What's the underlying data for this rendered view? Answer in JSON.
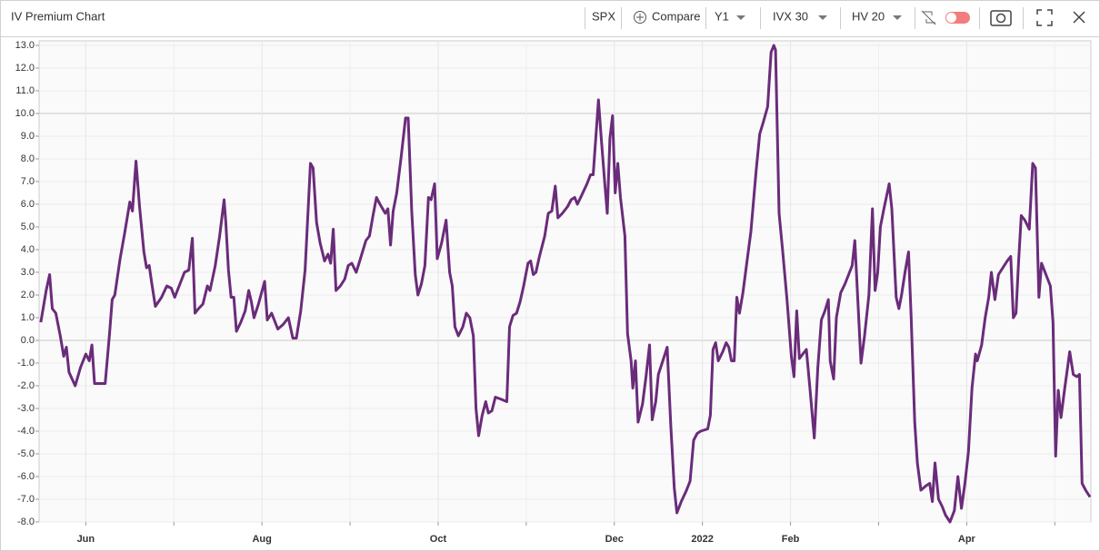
{
  "toolbar": {
    "title": "IV Premium Chart",
    "symbol": "SPX",
    "compare": "Compare",
    "period": "Y1",
    "iv": "IVX 30",
    "hv": "HV 20"
  },
  "chart_data": {
    "type": "line",
    "color": "#6a2c7a",
    "grid": true,
    "xlim": [
      -0.53,
      11.41
    ],
    "xticks": [
      {
        "value": 0,
        "label": "Jun"
      },
      {
        "value": 2,
        "label": "Aug"
      },
      {
        "value": 4,
        "label": "Oct"
      },
      {
        "value": 6,
        "label": "Dec"
      },
      {
        "value": 7,
        "label": "2022"
      },
      {
        "value": 8,
        "label": "Feb"
      },
      {
        "value": 10,
        "label": "Apr"
      }
    ],
    "xminorticks": [
      1,
      3,
      5,
      9,
      11
    ],
    "ylim": [
      -8,
      13.2
    ],
    "yticks": [
      {
        "value": -8,
        "label": "-8.0"
      },
      {
        "value": -7,
        "label": "-7.0"
      },
      {
        "value": -6,
        "label": "-6.0"
      },
      {
        "value": -5,
        "label": "-5.0"
      },
      {
        "value": -4,
        "label": "-4.0"
      },
      {
        "value": -3,
        "label": "-3.0"
      },
      {
        "value": -2,
        "label": "-2.0"
      },
      {
        "value": -1,
        "label": "-1.0"
      },
      {
        "value": 0,
        "label": "0.0"
      },
      {
        "value": 1,
        "label": "1.0"
      },
      {
        "value": 2,
        "label": "2.0"
      },
      {
        "value": 3,
        "label": "3.0"
      },
      {
        "value": 4,
        "label": "4.0"
      },
      {
        "value": 5,
        "label": "5.0"
      },
      {
        "value": 6,
        "label": "6.0"
      },
      {
        "value": 7,
        "label": "7.0"
      },
      {
        "value": 8,
        "label": "8.0"
      },
      {
        "value": 9,
        "label": "9.0"
      },
      {
        "value": 10,
        "label": "10.0"
      },
      {
        "value": 11,
        "label": "11.0"
      },
      {
        "value": 12,
        "label": "12.0"
      },
      {
        "value": 13,
        "label": "13.0"
      }
    ],
    "x": [
      -0.51,
      -0.45,
      -0.41,
      -0.38,
      -0.34,
      -0.29,
      -0.25,
      -0.22,
      -0.19,
      -0.12,
      -0.06,
      0,
      0.04,
      0.07,
      0.1,
      0.17,
      0.22,
      0.27,
      0.3,
      0.33,
      0.39,
      0.44,
      0.5,
      0.53,
      0.57,
      0.61,
      0.66,
      0.69,
      0.72,
      0.75,
      0.79,
      0.86,
      0.92,
      0.97,
      1.01,
      1.05,
      1.12,
      1.17,
      1.21,
      1.24,
      1.28,
      1.33,
      1.38,
      1.41,
      1.47,
      1.52,
      1.57,
      1.59,
      1.62,
      1.65,
      1.68,
      1.71,
      1.76,
      1.81,
      1.85,
      1.88,
      1.91,
      1.96,
      2.03,
      2.06,
      2.11,
      2.18,
      2.24,
      2.3,
      2.35,
      2.39,
      2.44,
      2.49,
      2.55,
      2.58,
      2.62,
      2.66,
      2.71,
      2.75,
      2.78,
      2.81,
      2.84,
      2.89,
      2.94,
      2.98,
      3.02,
      3.07,
      3.11,
      3.18,
      3.22,
      3.26,
      3.3,
      3.34,
      3.4,
      3.43,
      3.46,
      3.49,
      3.53,
      3.58,
      3.63,
      3.66,
      3.7,
      3.74,
      3.77,
      3.81,
      3.85,
      3.89,
      3.92,
      3.96,
      3.99,
      4.04,
      4.09,
      4.13,
      4.16,
      4.19,
      4.23,
      4.28,
      4.32,
      4.36,
      4.4,
      4.43,
      4.46,
      4.5,
      4.54,
      4.57,
      4.61,
      4.65,
      4.72,
      4.78,
      4.81,
      4.85,
      4.89,
      4.93,
      4.97,
      5.02,
      5.05,
      5.08,
      5.11,
      5.15,
      5.21,
      5.25,
      5.29,
      5.33,
      5.36,
      5.41,
      5.47,
      5.51,
      5.55,
      5.58,
      5.63,
      5.69,
      5.73,
      5.76,
      5.8,
      5.82,
      5.85,
      5.89,
      5.92,
      5.95,
      5.98,
      6.01,
      6.04,
      6.07,
      6.12,
      6.15,
      6.19,
      6.21,
      6.24,
      6.27,
      6.32,
      6.36,
      6.4,
      6.43,
      6.47,
      6.5,
      6.55,
      6.6,
      6.64,
      6.68,
      6.71,
      6.76,
      6.82,
      6.86,
      6.9,
      6.94,
      6.98,
      7.06,
      7.09,
      7.12,
      7.15,
      7.18,
      7.23,
      7.27,
      7.3,
      7.33,
      7.36,
      7.39,
      7.42,
      7.46,
      7.5,
      7.55,
      7.61,
      7.65,
      7.69,
      7.74,
      7.78,
      7.81,
      7.83,
      7.87,
      7.91,
      7.96,
      8.01,
      8.04,
      8.07,
      8.1,
      8.14,
      8.18,
      8.22,
      8.27,
      8.31,
      8.35,
      8.39,
      8.43,
      8.45,
      8.49,
      8.52,
      8.57,
      8.62,
      8.66,
      8.7,
      8.73,
      8.76,
      8.8,
      8.84,
      8.89,
      8.93,
      8.96,
      8.99,
      9.02,
      9.06,
      9.12,
      9.15,
      9.2,
      9.23,
      9.26,
      9.3,
      9.34,
      9.37,
      9.41,
      9.44,
      9.48,
      9.54,
      9.58,
      9.61,
      9.64,
      9.68,
      9.72,
      9.76,
      9.81,
      9.86,
      9.9,
      9.94,
      9.98,
      10.02,
      10.06,
      10.1,
      10.12,
      10.17,
      10.21,
      10.25,
      10.28,
      10.32,
      10.36,
      10.41,
      10.46,
      10.5,
      10.53,
      10.56,
      10.59,
      10.62,
      10.66,
      10.71,
      10.75,
      10.78,
      10.82,
      10.85,
      10.89,
      10.95,
      10.98,
      11.01,
      11.04,
      11.07,
      11.11,
      11.17,
      11.21,
      11.25,
      11.28,
      11.31,
      11.35,
      11.4
    ],
    "values": [
      0.8,
      2.2,
      2.9,
      1.4,
      1.2,
      0.2,
      -0.7,
      -0.3,
      -1.4,
      -2.0,
      -1.2,
      -0.6,
      -0.9,
      -0.2,
      -1.9,
      -1.9,
      -1.9,
      0.3,
      1.8,
      2.0,
      3.6,
      4.7,
      6.1,
      5.7,
      7.9,
      5.9,
      3.9,
      3.2,
      3.3,
      2.5,
      1.5,
      1.9,
      2.4,
      2.3,
      1.9,
      2.3,
      3.0,
      3.1,
      4.5,
      1.2,
      1.4,
      1.6,
      2.4,
      2.2,
      3.3,
      4.6,
      6.2,
      5.2,
      3.1,
      1.9,
      1.9,
      0.4,
      0.8,
      1.3,
      2.2,
      1.7,
      1.0,
      1.6,
      2.6,
      0.9,
      1.2,
      0.5,
      0.7,
      1.0,
      0.1,
      0.1,
      1.3,
      3.1,
      7.8,
      7.6,
      5.2,
      4.3,
      3.5,
      3.8,
      3.4,
      4.9,
      2.2,
      2.4,
      2.7,
      3.3,
      3.4,
      3.0,
      3.5,
      4.4,
      4.6,
      5.5,
      6.3,
      6.0,
      5.6,
      5.8,
      4.2,
      5.7,
      6.5,
      8.1,
      9.8,
      9.8,
      5.7,
      2.9,
      2.0,
      2.5,
      3.3,
      6.3,
      6.2,
      6.9,
      3.6,
      4.3,
      5.3,
      3.0,
      2.4,
      0.6,
      0.2,
      0.6,
      1.2,
      1.0,
      0.2,
      -3.0,
      -4.2,
      -3.3,
      -2.7,
      -3.2,
      -3.1,
      -2.5,
      -2.6,
      -2.7,
      0.6,
      1.1,
      1.2,
      1.7,
      2.4,
      3.4,
      3.5,
      2.9,
      3.0,
      3.7,
      4.6,
      5.6,
      5.7,
      6.8,
      5.4,
      5.6,
      5.9,
      6.2,
      6.3,
      6.0,
      6.4,
      6.9,
      7.3,
      7.3,
      9.5,
      10.6,
      9.0,
      7.0,
      5.6,
      8.9,
      9.9,
      6.5,
      7.8,
      6.3,
      4.6,
      0.3,
      -0.9,
      -2.1,
      -0.9,
      -3.6,
      -2.8,
      -1.6,
      -0.2,
      -3.5,
      -2.7,
      -1.5,
      -0.9,
      -0.3,
      -3.7,
      -6.5,
      -7.6,
      -7.1,
      -6.6,
      -6.2,
      -4.4,
      -4.1,
      -4.0,
      -3.9,
      -3.3,
      -0.4,
      -0.1,
      -0.9,
      -0.5,
      -0.1,
      -0.3,
      -0.9,
      -0.9,
      1.9,
      1.2,
      2.1,
      3.3,
      4.8,
      7.5,
      9.1,
      9.6,
      10.3,
      12.7,
      13.0,
      12.8,
      5.6,
      4.0,
      1.8,
      -0.7,
      -1.6,
      1.3,
      -0.8,
      -0.6,
      -0.4,
      -2.1,
      -4.3,
      -1.2,
      0.9,
      1.3,
      1.8,
      -0.9,
      -1.7,
      1.0,
      2.1,
      2.5,
      2.9,
      3.3,
      4.4,
      2.1,
      -1.0,
      0.2,
      2.0,
      5.8,
      2.2,
      3.0,
      5.0,
      5.8,
      6.9,
      5.8,
      1.9,
      1.4,
      2.0,
      3.0,
      3.9,
      1.0,
      -3.6,
      -5.4,
      -6.6,
      -6.4,
      -6.3,
      -7.1,
      -5.4,
      -7.0,
      -7.3,
      -7.7,
      -8.0,
      -7.5,
      -6.0,
      -7.4,
      -6.3,
      -4.9,
      -2.1,
      -0.6,
      -0.9,
      -0.2,
      1.0,
      1.9,
      3.0,
      1.8,
      2.9,
      3.2,
      3.5,
      3.7,
      1.0,
      1.2,
      3.5,
      5.5,
      5.3,
      4.9,
      7.8,
      7.6,
      1.9,
      3.4,
      3.0,
      2.4,
      0.8,
      -5.1,
      -2.2,
      -3.4,
      -2.2,
      -0.5,
      -1.5,
      -1.6,
      -1.5,
      -6.3,
      -6.6,
      -6.9
    ]
  }
}
